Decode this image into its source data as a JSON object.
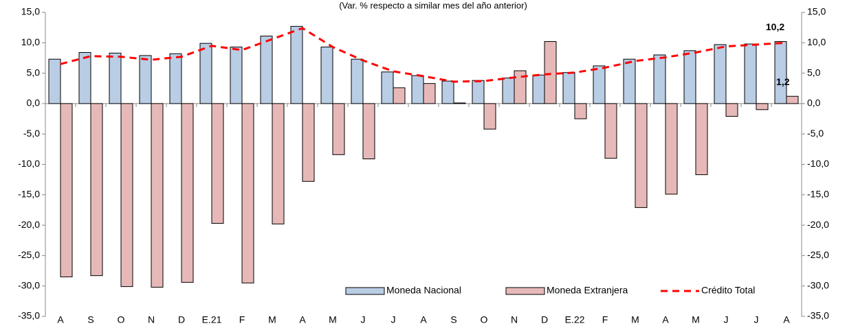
{
  "chart_data": {
    "type": "bar",
    "subtitle": "(Var. % respecto a similar mes del año anterior)",
    "categories": [
      "A",
      "S",
      "O",
      "N",
      "D",
      "E.21",
      "F",
      "M",
      "A",
      "M",
      "J",
      "J",
      "A",
      "S",
      "O",
      "N",
      "D",
      "E.22",
      "F",
      "M",
      "A",
      "M",
      "J",
      "J",
      "A"
    ],
    "series": [
      {
        "name": "Moneda Nacional",
        "type": "bar",
        "color": "#b9cde5",
        "values": [
          7.3,
          8.4,
          8.3,
          7.9,
          8.2,
          9.9,
          9.3,
          11.1,
          12.7,
          9.3,
          7.3,
          5.2,
          4.6,
          3.7,
          3.8,
          4.2,
          4.7,
          5.1,
          6.2,
          7.3,
          8.0,
          8.7,
          9.7,
          9.8,
          10.2
        ],
        "value_labels": [
          null,
          null,
          null,
          null,
          null,
          null,
          null,
          null,
          null,
          null,
          null,
          null,
          null,
          null,
          null,
          null,
          null,
          null,
          null,
          null,
          null,
          null,
          null,
          null,
          "10,2"
        ]
      },
      {
        "name": "Moneda Extranjera",
        "type": "bar",
        "color": "#e6b9b8",
        "values": [
          -28.5,
          -28.3,
          -30.1,
          -30.2,
          -29.4,
          -19.7,
          -29.5,
          -19.8,
          -12.8,
          -8.4,
          -9.1,
          2.6,
          3.3,
          0.1,
          -4.2,
          5.4,
          10.2,
          -2.5,
          -9.0,
          -17.1,
          -14.9,
          -11.7,
          -2.1,
          -1.0,
          1.2
        ],
        "value_labels": [
          null,
          null,
          null,
          null,
          null,
          null,
          null,
          null,
          null,
          null,
          null,
          null,
          null,
          null,
          null,
          null,
          null,
          null,
          null,
          null,
          null,
          null,
          null,
          null,
          "1,2"
        ]
      },
      {
        "name": "Crédito Total",
        "type": "line",
        "color": "#ff0000",
        "values": [
          6.5,
          7.8,
          7.7,
          7.2,
          7.7,
          9.5,
          8.8,
          10.6,
          12.4,
          9.3,
          7.1,
          5.3,
          4.5,
          3.6,
          3.7,
          4.3,
          4.8,
          5.1,
          5.9,
          7.0,
          7.6,
          8.4,
          9.4,
          9.7,
          10.0
        ]
      }
    ],
    "ylim": [
      -35,
      15
    ],
    "yticks": [
      {
        "value": 15,
        "label": "15,0"
      },
      {
        "value": 10,
        "label": "10,0"
      },
      {
        "value": 5,
        "label": "5,0"
      },
      {
        "value": 0,
        "label": "0,0"
      },
      {
        "value": -5,
        "label": "-5,0"
      },
      {
        "value": -10,
        "label": "-10,0"
      },
      {
        "value": -15,
        "label": "-15,0"
      },
      {
        "value": -20,
        "label": "-20,0"
      },
      {
        "value": -25,
        "label": "-25,0"
      },
      {
        "value": -30,
        "label": "-30,0"
      },
      {
        "value": -35,
        "label": "-35,0"
      }
    ],
    "y2lim": [
      -35,
      15
    ],
    "y2ticks": [
      {
        "value": 15,
        "label": "15,0"
      },
      {
        "value": 10,
        "label": "10,0"
      },
      {
        "value": 5,
        "label": "5,0"
      },
      {
        "value": 0,
        "label": "0,0"
      },
      {
        "value": -5,
        "label": "-5,0"
      },
      {
        "value": -10,
        "label": "-10,0"
      },
      {
        "value": -15,
        "label": "-15,0"
      },
      {
        "value": -20,
        "label": "-20,0"
      },
      {
        "value": -25,
        "label": "-25,0"
      },
      {
        "value": -30,
        "label": "-30,0"
      },
      {
        "value": -35,
        "label": "-35,0"
      }
    ],
    "grid": false,
    "legend": "lower right"
  }
}
